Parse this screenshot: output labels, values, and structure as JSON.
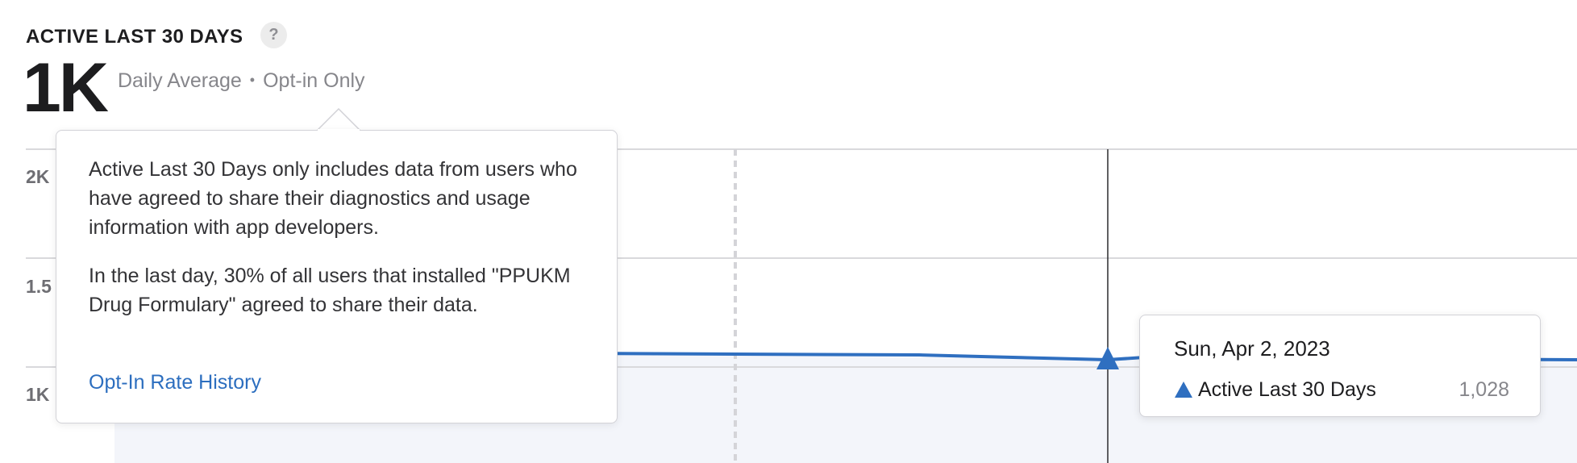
{
  "header": {
    "title": "ACTIVE LAST 30 DAYS",
    "help_icon_glyph": "?",
    "metric_value": "1K",
    "metric_label": "Daily Average",
    "separator": "•",
    "metric_scope": "Opt-in Only"
  },
  "popover": {
    "paragraph_1": "Active Last 30 Days only includes data from users who have agreed to share their diagnostics and usage information with app developers.",
    "paragraph_2": "In the last day, 30% of all users that installed \"PPUKM Drug Formulary\" agreed to share their data.",
    "link_label": "Opt-In Rate History"
  },
  "chart_data": {
    "type": "area",
    "y_ticks": [
      "2K",
      "1.5",
      "1K"
    ],
    "series": [
      {
        "name": "Active Last 30 Days",
        "values_visible": [
          1030,
          1030,
          1030,
          1028,
          1027,
          1028,
          1028
        ]
      }
    ],
    "hovered_point": {
      "date": "Sun, Apr 2, 2023",
      "series": "Active Last 30 Days",
      "value": "1,028"
    },
    "ylim": [
      1000,
      2000
    ],
    "grid": true
  },
  "tooltip": {
    "date": "Sun, Apr 2, 2023",
    "series_name": "Active Last 30 Days",
    "series_value": "1,028"
  },
  "colors": {
    "series": "#2f6fc0",
    "link": "#2c6ebf",
    "area_fill": "#f3f5fa",
    "grid": "#d9d9dc"
  }
}
